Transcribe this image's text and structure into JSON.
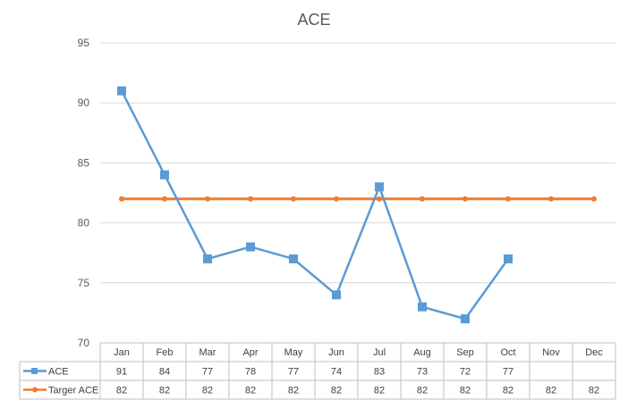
{
  "chart_data": {
    "type": "line",
    "title": "ACE",
    "categories": [
      "Jan",
      "Feb",
      "Mar",
      "Apr",
      "May",
      "Jun",
      "Jul",
      "Aug",
      "Sep",
      "Oct",
      "Nov",
      "Dec"
    ],
    "ylim": [
      70,
      95
    ],
    "yticks": [
      70,
      75,
      80,
      85,
      90,
      95
    ],
    "grid": true,
    "legend": "data-table",
    "series": [
      {
        "name": "ACE",
        "values": [
          91,
          84,
          77,
          78,
          77,
          74,
          83,
          73,
          72,
          77,
          null,
          null
        ],
        "color": "#5b9bd5",
        "marker": "square"
      },
      {
        "name": "Targer ACE",
        "values": [
          82,
          82,
          82,
          82,
          82,
          82,
          82,
          82,
          82,
          82,
          82,
          82
        ],
        "color": "#ed7d31",
        "marker": "circle"
      }
    ]
  }
}
